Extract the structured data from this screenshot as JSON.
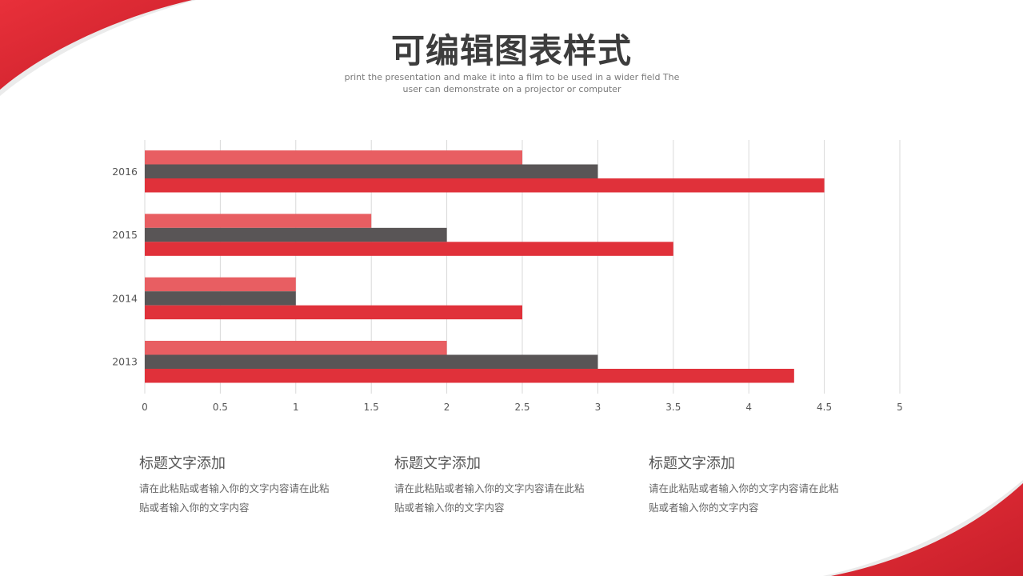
{
  "page": {
    "title": "可编辑图表样式",
    "subtitle": "print the presentation and make it into a film to be used in a wider field The user can demonstrate on a projector or computer"
  },
  "colors": {
    "accent_red": "#e0313a",
    "light_red": "#e85e62",
    "dark_gray": "#595556",
    "grid": "#d9d9d9"
  },
  "chart_data": {
    "type": "bar",
    "orientation": "horizontal",
    "categories": [
      "2013",
      "2014",
      "2015",
      "2016"
    ],
    "series": [
      {
        "values": [
          2,
          1,
          1.5,
          2.5
        ],
        "color": "#e85e62"
      },
      {
        "values": [
          3,
          1,
          2,
          3
        ],
        "color": "#595556"
      },
      {
        "values": [
          4.3,
          2.5,
          3.5,
          4.5
        ],
        "color": "#e0313a"
      }
    ],
    "xlim": [
      0,
      5
    ],
    "xticks": [
      "0",
      "0.5",
      "1",
      "1.5",
      "2",
      "2.5",
      "3",
      "3.5",
      "4",
      "4.5",
      "5"
    ],
    "grid": true,
    "legend": "none"
  },
  "columns": [
    {
      "title": "标题文字添加",
      "text": "请在此粘贴或者输入你的文字内容请在此粘贴或者输入你的文字内容"
    },
    {
      "title": "标题文字添加",
      "text": "请在此粘贴或者输入你的文字内容请在此粘贴或者输入你的文字内容"
    },
    {
      "title": "标题文字添加",
      "text": "请在此粘贴或者输入你的文字内容请在此粘贴或者输入你的文字内容"
    }
  ]
}
